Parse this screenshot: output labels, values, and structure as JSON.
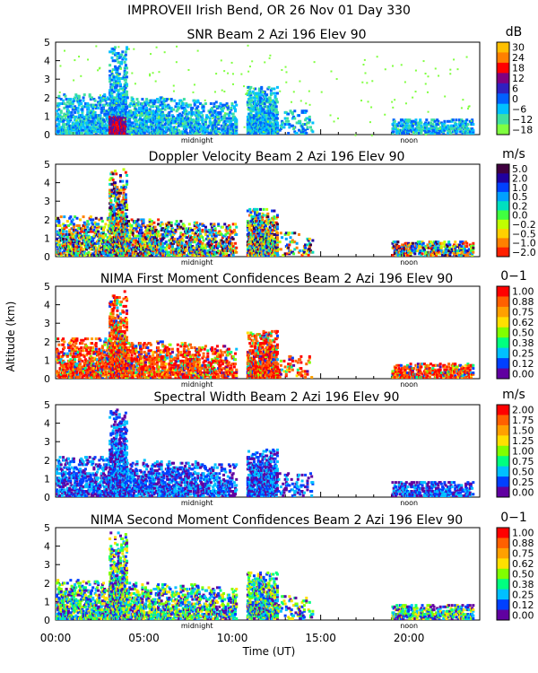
{
  "suptitle": "IMPROVEII  Irish Bend, OR   26 Nov 01 Day 330",
  "ylabel": "Altitude (km)",
  "xlabel": "Time (UT)",
  "x_ticks": [
    "00:00",
    "05:00",
    "10:00",
    "15:00",
    "20:00"
  ],
  "x_tick_hours": [
    0,
    5,
    10,
    15,
    20
  ],
  "x_range_hours": [
    0,
    24
  ],
  "y_range_km": [
    0,
    5
  ],
  "y_ticks": [
    "0",
    "1",
    "2",
    "3",
    "4",
    "5"
  ],
  "marker_labels": {
    "midnight": "midnight",
    "noon": "noon"
  },
  "marker_hours": {
    "midnight": 8.0,
    "noon": 20.0
  },
  "chart_data": [
    {
      "type": "heatmap",
      "title": "SNR Beam 2 Azi 196 Elev 90",
      "unit": "dB",
      "colorbar_labels": [
        "30",
        "24",
        "18",
        "12",
        "6",
        "0",
        "−6",
        "−12",
        "−18"
      ],
      "colorbar_colors": [
        "#ffc000",
        "#ff8000",
        "#ff0000",
        "#800080",
        "#3020c0",
        "#0060ff",
        "#00c0ff",
        "#40e0a0",
        "#80ff40"
      ],
      "ylim": [
        0,
        5
      ]
    },
    {
      "type": "heatmap",
      "title": "Doppler Velocity Beam 2 Azi 196 Elev 90",
      "unit": "m/s",
      "colorbar_labels": [
        "5.0",
        "2.0",
        "1.0",
        "0.5",
        "0.2",
        "0.0",
        "−0.2",
        "−0.5",
        "−1.0",
        "−2.0"
      ],
      "colorbar_colors": [
        "#400040",
        "#2000a0",
        "#0040ff",
        "#00a0ff",
        "#00e0c0",
        "#40ff40",
        "#c0ff00",
        "#ffd000",
        "#ff8000",
        "#ff2000"
      ],
      "ylim": [
        0,
        5
      ]
    },
    {
      "type": "heatmap",
      "title": "NIMA First Moment Confidences Beam 2 Azi 196 Elev 90",
      "unit": "0−1",
      "colorbar_labels": [
        "1.00",
        "0.88",
        "0.75",
        "0.62",
        "0.50",
        "0.38",
        "0.25",
        "0.12",
        "0.00"
      ],
      "colorbar_colors": [
        "#ff0000",
        "#ff6000",
        "#ffa000",
        "#ffe000",
        "#80ff00",
        "#00ff80",
        "#00c0ff",
        "#0040ff",
        "#6000a0"
      ],
      "ylim": [
        0,
        5
      ]
    },
    {
      "type": "heatmap",
      "title": "Spectral Width Beam 2 Azi 196 Elev 90",
      "unit": "m/s",
      "colorbar_labels": [
        "2.00",
        "1.75",
        "1.50",
        "1.25",
        "1.00",
        "0.75",
        "0.50",
        "0.25",
        "0.00"
      ],
      "colorbar_colors": [
        "#ff0000",
        "#ff6000",
        "#ffa000",
        "#ffe000",
        "#80ff00",
        "#00ff80",
        "#00c0ff",
        "#0040ff",
        "#6000a0"
      ],
      "ylim": [
        0,
        5
      ]
    },
    {
      "type": "heatmap",
      "title": "NIMA Second Moment Confidences Beam 2 Azi 196 Elev 90",
      "unit": "0−1",
      "colorbar_labels": [
        "1.00",
        "0.88",
        "0.75",
        "0.62",
        "0.50",
        "0.38",
        "0.25",
        "0.12",
        "0.00"
      ],
      "colorbar_colors": [
        "#ff0000",
        "#ff6000",
        "#ffa000",
        "#ffe000",
        "#80ff00",
        "#00ff80",
        "#00c0ff",
        "#0040ff",
        "#6000a0"
      ],
      "ylim": [
        0,
        5
      ]
    }
  ]
}
